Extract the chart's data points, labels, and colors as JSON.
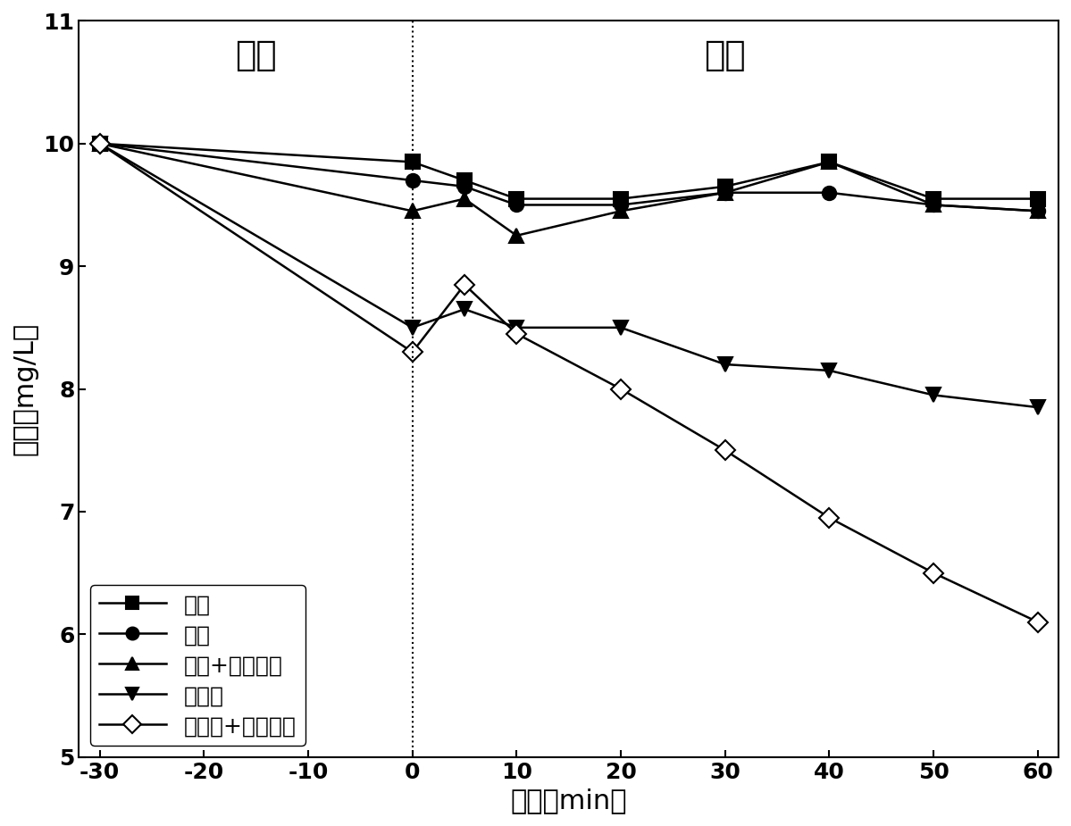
{
  "series": [
    {
      "label": "空白",
      "x": [
        -30,
        0,
        5,
        10,
        20,
        30,
        40,
        50,
        60
      ],
      "y": [
        10.0,
        9.85,
        9.7,
        9.55,
        9.55,
        9.65,
        9.85,
        9.55,
        9.55
      ],
      "marker": "s",
      "fillstyle": "full"
    },
    {
      "label": "光解",
      "x": [
        -30,
        0,
        5,
        10,
        20,
        30,
        40,
        50,
        60
      ],
      "y": [
        10.0,
        9.7,
        9.65,
        9.5,
        9.5,
        9.6,
        9.6,
        9.5,
        9.45
      ],
      "marker": "o",
      "fillstyle": "full"
    },
    {
      "label": "光解+超声雾化",
      "x": [
        -30,
        0,
        5,
        10,
        20,
        30,
        40,
        50,
        60
      ],
      "y": [
        10.0,
        9.45,
        9.55,
        9.25,
        9.45,
        9.6,
        9.85,
        9.5,
        9.45
      ],
      "marker": "^",
      "fillstyle": "full"
    },
    {
      "label": "光催化",
      "x": [
        -30,
        0,
        5,
        10,
        20,
        30,
        40,
        50,
        60
      ],
      "y": [
        10.0,
        8.5,
        8.65,
        8.5,
        8.5,
        8.2,
        8.15,
        7.95,
        7.85
      ],
      "marker": "v",
      "fillstyle": "full"
    },
    {
      "label": "光催化+超声雾化",
      "x": [
        -30,
        0,
        5,
        10,
        20,
        30,
        40,
        50,
        60
      ],
      "y": [
        10.0,
        8.3,
        8.85,
        8.45,
        8.0,
        7.5,
        6.95,
        6.5,
        6.1
      ],
      "marker": "D",
      "fillstyle": "none"
    }
  ],
  "xlabel": "时间（min）",
  "ylabel": "浓度（mg/L）",
  "xlim": [
    -32,
    62
  ],
  "ylim": [
    5,
    11
  ],
  "xticks": [
    -30,
    -20,
    -10,
    0,
    10,
    20,
    30,
    40,
    50,
    60
  ],
  "yticks": [
    5,
    6,
    7,
    8,
    9,
    10,
    11
  ],
  "label_guandeng": "关灯",
  "label_kaideng": "开灯",
  "vline_x": 0,
  "background_color": "white",
  "markersize": 11,
  "linewidth": 1.8,
  "tick_fontsize": 18,
  "axis_label_fontsize": 22,
  "annotation_fontsize": 28,
  "legend_fontsize": 18
}
